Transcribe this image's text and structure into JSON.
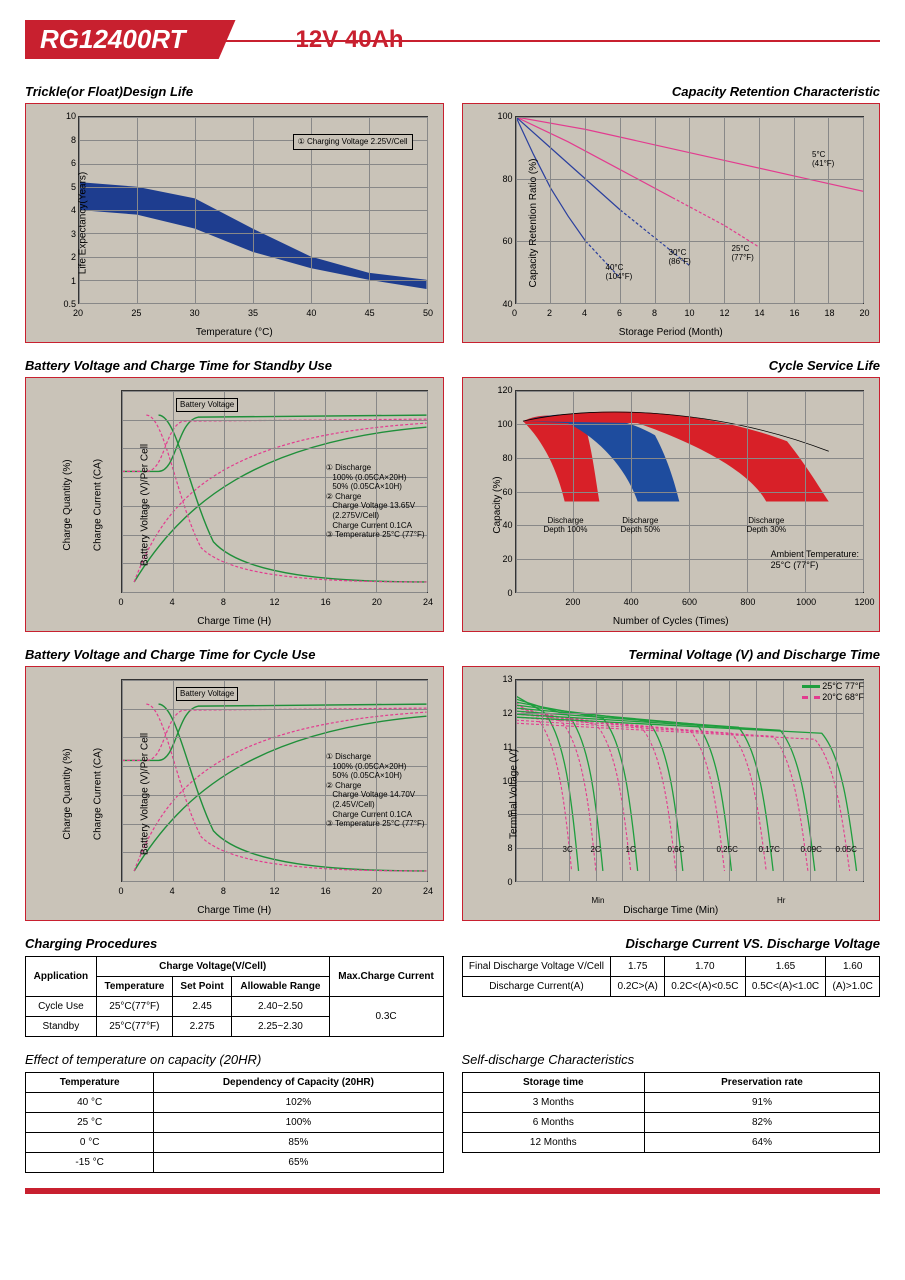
{
  "header": {
    "model": "RG12400RT",
    "spec": "12V  40Ah"
  },
  "chart_trickle": {
    "title": "Trickle(or Float)Design Life",
    "xlabel": "Temperature (°C)",
    "ylabel": "Life Expectancy(Years)",
    "xticks": [
      "20",
      "25",
      "30",
      "35",
      "40",
      "45",
      "50"
    ],
    "yticks": [
      "0.5",
      "1",
      "2",
      "3",
      "4",
      "5",
      "6",
      "8",
      "10"
    ],
    "annot": "① Charging Voltage\n2.25V/Cell",
    "band_color": "#1e3d8f",
    "band_upper": [
      [
        20,
        5.2
      ],
      [
        25,
        5.0
      ],
      [
        30,
        4.5
      ],
      [
        35,
        3.2
      ],
      [
        40,
        2.0
      ],
      [
        45,
        1.3
      ],
      [
        50,
        1.0
      ]
    ],
    "band_lower": [
      [
        20,
        4.0
      ],
      [
        25,
        3.8
      ],
      [
        30,
        3.2
      ],
      [
        35,
        2.2
      ],
      [
        40,
        1.5
      ],
      [
        45,
        1.0
      ],
      [
        50,
        0.8
      ]
    ]
  },
  "chart_retention": {
    "title": "Capacity Retention Characteristic",
    "xlabel": "Storage Period (Month)",
    "ylabel": "Capacity Retention Ratio (%)",
    "xticks": [
      "0",
      "2",
      "4",
      "6",
      "8",
      "10",
      "12",
      "14",
      "16",
      "18",
      "20"
    ],
    "yticks": [
      "40",
      "60",
      "80",
      "100"
    ],
    "curves": [
      {
        "label": "5°C\n(41°F)",
        "color": "#e33b8f",
        "points": [
          [
            0,
            100
          ],
          [
            4,
            96
          ],
          [
            8,
            91
          ],
          [
            12,
            86
          ],
          [
            16,
            81
          ],
          [
            20,
            76
          ]
        ]
      },
      {
        "label": "25°C\n(77°F)",
        "color": "#e33b8f",
        "points": [
          [
            0,
            100
          ],
          [
            3,
            92
          ],
          [
            6,
            83
          ],
          [
            9,
            74
          ],
          [
            12,
            65
          ],
          [
            14,
            58
          ]
        ],
        "dash_after": 11
      },
      {
        "label": "30°C\n(86°F)",
        "color": "#2a3f9e",
        "points": [
          [
            0,
            100
          ],
          [
            2,
            90
          ],
          [
            4,
            80
          ],
          [
            6,
            70
          ],
          [
            8,
            61
          ],
          [
            10,
            52
          ]
        ],
        "dash_after": 7.5
      },
      {
        "label": "40°C\n(104°F)",
        "color": "#2a3f9e",
        "points": [
          [
            0,
            100
          ],
          [
            1,
            88
          ],
          [
            2,
            77
          ],
          [
            3,
            68
          ],
          [
            4,
            60
          ],
          [
            5,
            54
          ],
          [
            6,
            48
          ]
        ],
        "dash_after": 4.5
      }
    ]
  },
  "chart_standby": {
    "title": "Battery Voltage and Charge Time for Standby Use",
    "xlabel": "Charge Time (H)",
    "y1label": "Charge Quantity (%)",
    "y2label": "Charge Current (CA)",
    "y3label": "Battery Voltage (V)/Per Cell",
    "xticks": [
      "0",
      "4",
      "8",
      "12",
      "16",
      "20",
      "24"
    ],
    "y1ticks": [
      "0",
      "20",
      "40",
      "60",
      "80",
      "100",
      "120",
      "140"
    ],
    "y2ticks": [
      "0",
      "0.02",
      "0.05",
      "0.08",
      "0.11",
      "0.14",
      "0.17",
      "0.20"
    ],
    "y3ticks": [
      "0",
      "1.40",
      "1.60",
      "1.80",
      "2.00",
      "2.20",
      "2.40",
      "2.60"
    ],
    "notes": "① Discharge\n   100% (0.05CA×20H)\n   50% (0.05CA×10H)\n② Charge\n   Charge Voltage 13.65V\n   (2.275V/Cell)\n   Charge Current 0.1CA\n③ Temperature 25°C (77°F)",
    "bv_label": "Battery Voltage",
    "cq_label": "Charge Quantity (to-Discharge Quantity) Ratio",
    "cc_label": "Charge Current"
  },
  "chart_cycle_life": {
    "title": "Cycle Service Life",
    "xlabel": "Number of Cycles (Times)",
    "ylabel": "Capacity (%)",
    "xticks": [
      "200",
      "400",
      "600",
      "800",
      "1000",
      "1200"
    ],
    "yticks": [
      "0",
      "20",
      "40",
      "60",
      "80",
      "100",
      "120"
    ],
    "labels": [
      "Discharge\nDepth 100%",
      "Discharge\nDepth 50%",
      "Discharge\nDepth 30%"
    ],
    "ambient": "Ambient Temperature:\n25°C (77°F)",
    "band_colors": [
      "#d82028",
      "#1e4c9e",
      "#d82028"
    ]
  },
  "chart_cycle_charge": {
    "title": "Battery Voltage and Charge Time for Cycle Use",
    "xlabel": "Charge Time (H)",
    "notes": "① Discharge\n   100% (0.05CA×20H)\n   50% (0.05CA×10H)\n② Charge\n   Charge Voltage 14.70V\n   (2.45V/Cell)\n   Charge Current 0.1CA\n③ Temperature 25°C (77°F)"
  },
  "chart_terminal": {
    "title": "Terminal Voltage (V) and Discharge Time",
    "xlabel": "Discharge Time (Min)",
    "ylabel": "Terminal Voltage (V)",
    "yticks": [
      "0",
      "8",
      "9",
      "10",
      "11",
      "12",
      "13"
    ],
    "xticks_top": [
      "1",
      "2",
      "3",
      "5",
      "10",
      "20",
      "30",
      "60",
      "2",
      "3",
      "5",
      "10",
      "20",
      "30"
    ],
    "min_label": "Min",
    "hr_label": "Hr",
    "legend": [
      {
        "label": "25°C 77°F",
        "color": "#1f9e3e",
        "dash": false
      },
      {
        "label": "20°C 68°F",
        "color": "#e33b8f",
        "dash": true
      }
    ],
    "rate_labels": [
      "3C",
      "2C",
      "1C",
      "0.6C",
      "0.25C",
      "0.17C",
      "0.09C",
      "0.05C"
    ]
  },
  "table_charging": {
    "title": "Charging Procedures",
    "headers": {
      "app": "Application",
      "cv": "Charge Voltage(V/Cell)",
      "temp": "Temperature",
      "sp": "Set Point",
      "ar": "Allowable Range",
      "mcc": "Max.Charge Current"
    },
    "rows": [
      {
        "app": "Cycle Use",
        "temp": "25°C(77°F)",
        "sp": "2.45",
        "ar": "2.40~2.50"
      },
      {
        "app": "Standby",
        "temp": "25°C(77°F)",
        "sp": "2.275",
        "ar": "2.25~2.30"
      }
    ],
    "mcc": "0.3C"
  },
  "table_discharge": {
    "title": "Discharge Current VS. Discharge Voltage",
    "row1_label": "Final Discharge Voltage V/Cell",
    "row1_vals": [
      "1.75",
      "1.70",
      "1.65",
      "1.60"
    ],
    "row2_label": "Discharge Current(A)",
    "row2_vals": [
      "0.2C>(A)",
      "0.2C<(A)<0.5C",
      "0.5C<(A)<1.0C",
      "(A)>1.0C"
    ]
  },
  "table_temp": {
    "title": "Effect of temperature on capacity (20HR)",
    "headers": [
      "Temperature",
      "Dependency of Capacity (20HR)"
    ],
    "rows": [
      [
        "40 °C",
        "102%"
      ],
      [
        "25 °C",
        "100%"
      ],
      [
        "0 °C",
        "85%"
      ],
      [
        "-15 °C",
        "65%"
      ]
    ]
  },
  "table_self": {
    "title": "Self-discharge Characteristics",
    "headers": [
      "Storage time",
      "Preservation rate"
    ],
    "rows": [
      [
        "3 Months",
        "91%"
      ],
      [
        "6 Months",
        "82%"
      ],
      [
        "12 Months",
        "64%"
      ]
    ]
  }
}
